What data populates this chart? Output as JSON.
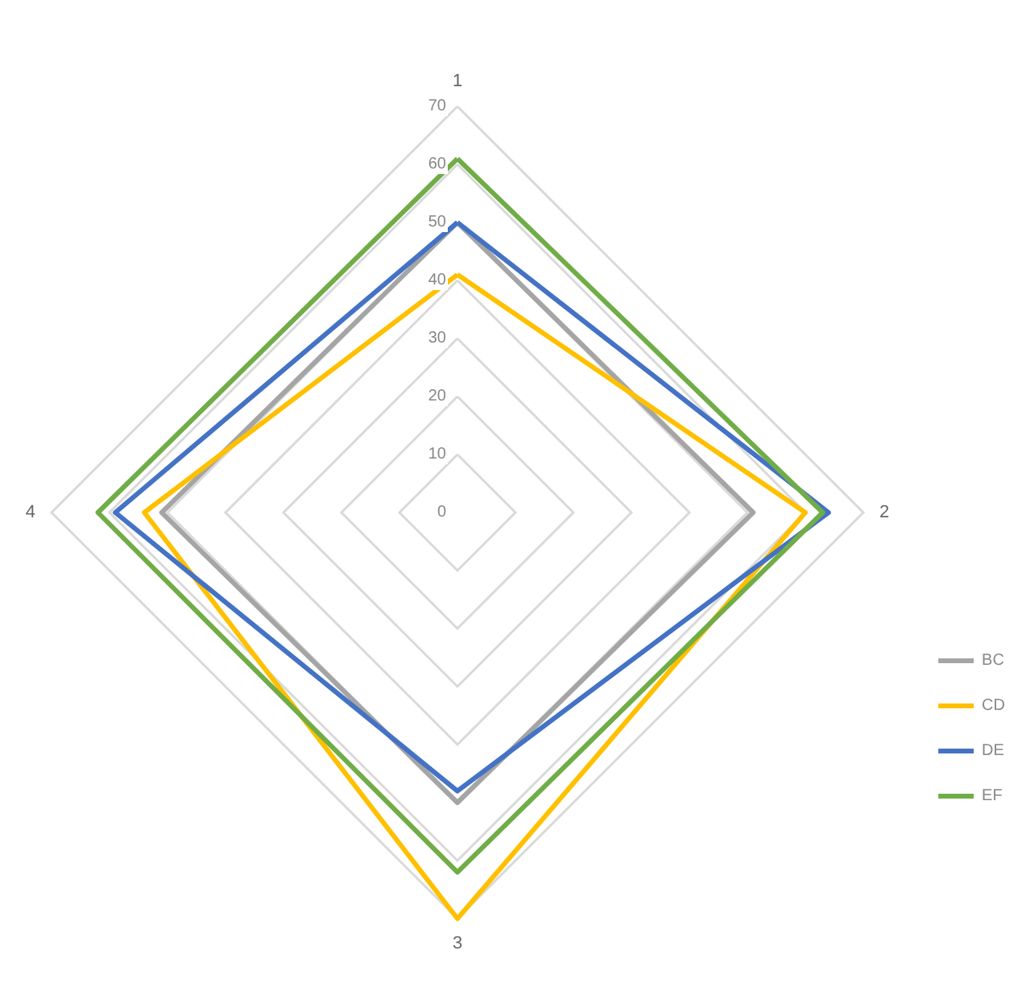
{
  "chart_data": {
    "type": "radar",
    "categories": [
      "1",
      "2",
      "3",
      "4"
    ],
    "series": [
      {
        "name": "BC",
        "color": "#a5a5a5",
        "values": [
          50,
          51,
          50,
          51
        ]
      },
      {
        "name": "CD",
        "color": "#ffc000",
        "values": [
          41,
          60,
          70,
          54
        ]
      },
      {
        "name": "DE",
        "color": "#4472c4",
        "values": [
          50,
          64,
          48,
          59
        ]
      },
      {
        "name": "EF",
        "color": "#70ad47",
        "values": [
          61,
          63,
          62,
          62
        ]
      }
    ],
    "ylim": [
      0,
      70
    ],
    "yticks": [
      0,
      10,
      20,
      30,
      40,
      50,
      60,
      70
    ],
    "grid": true,
    "legend": "right",
    "marker": "none",
    "line_style": "solid"
  }
}
